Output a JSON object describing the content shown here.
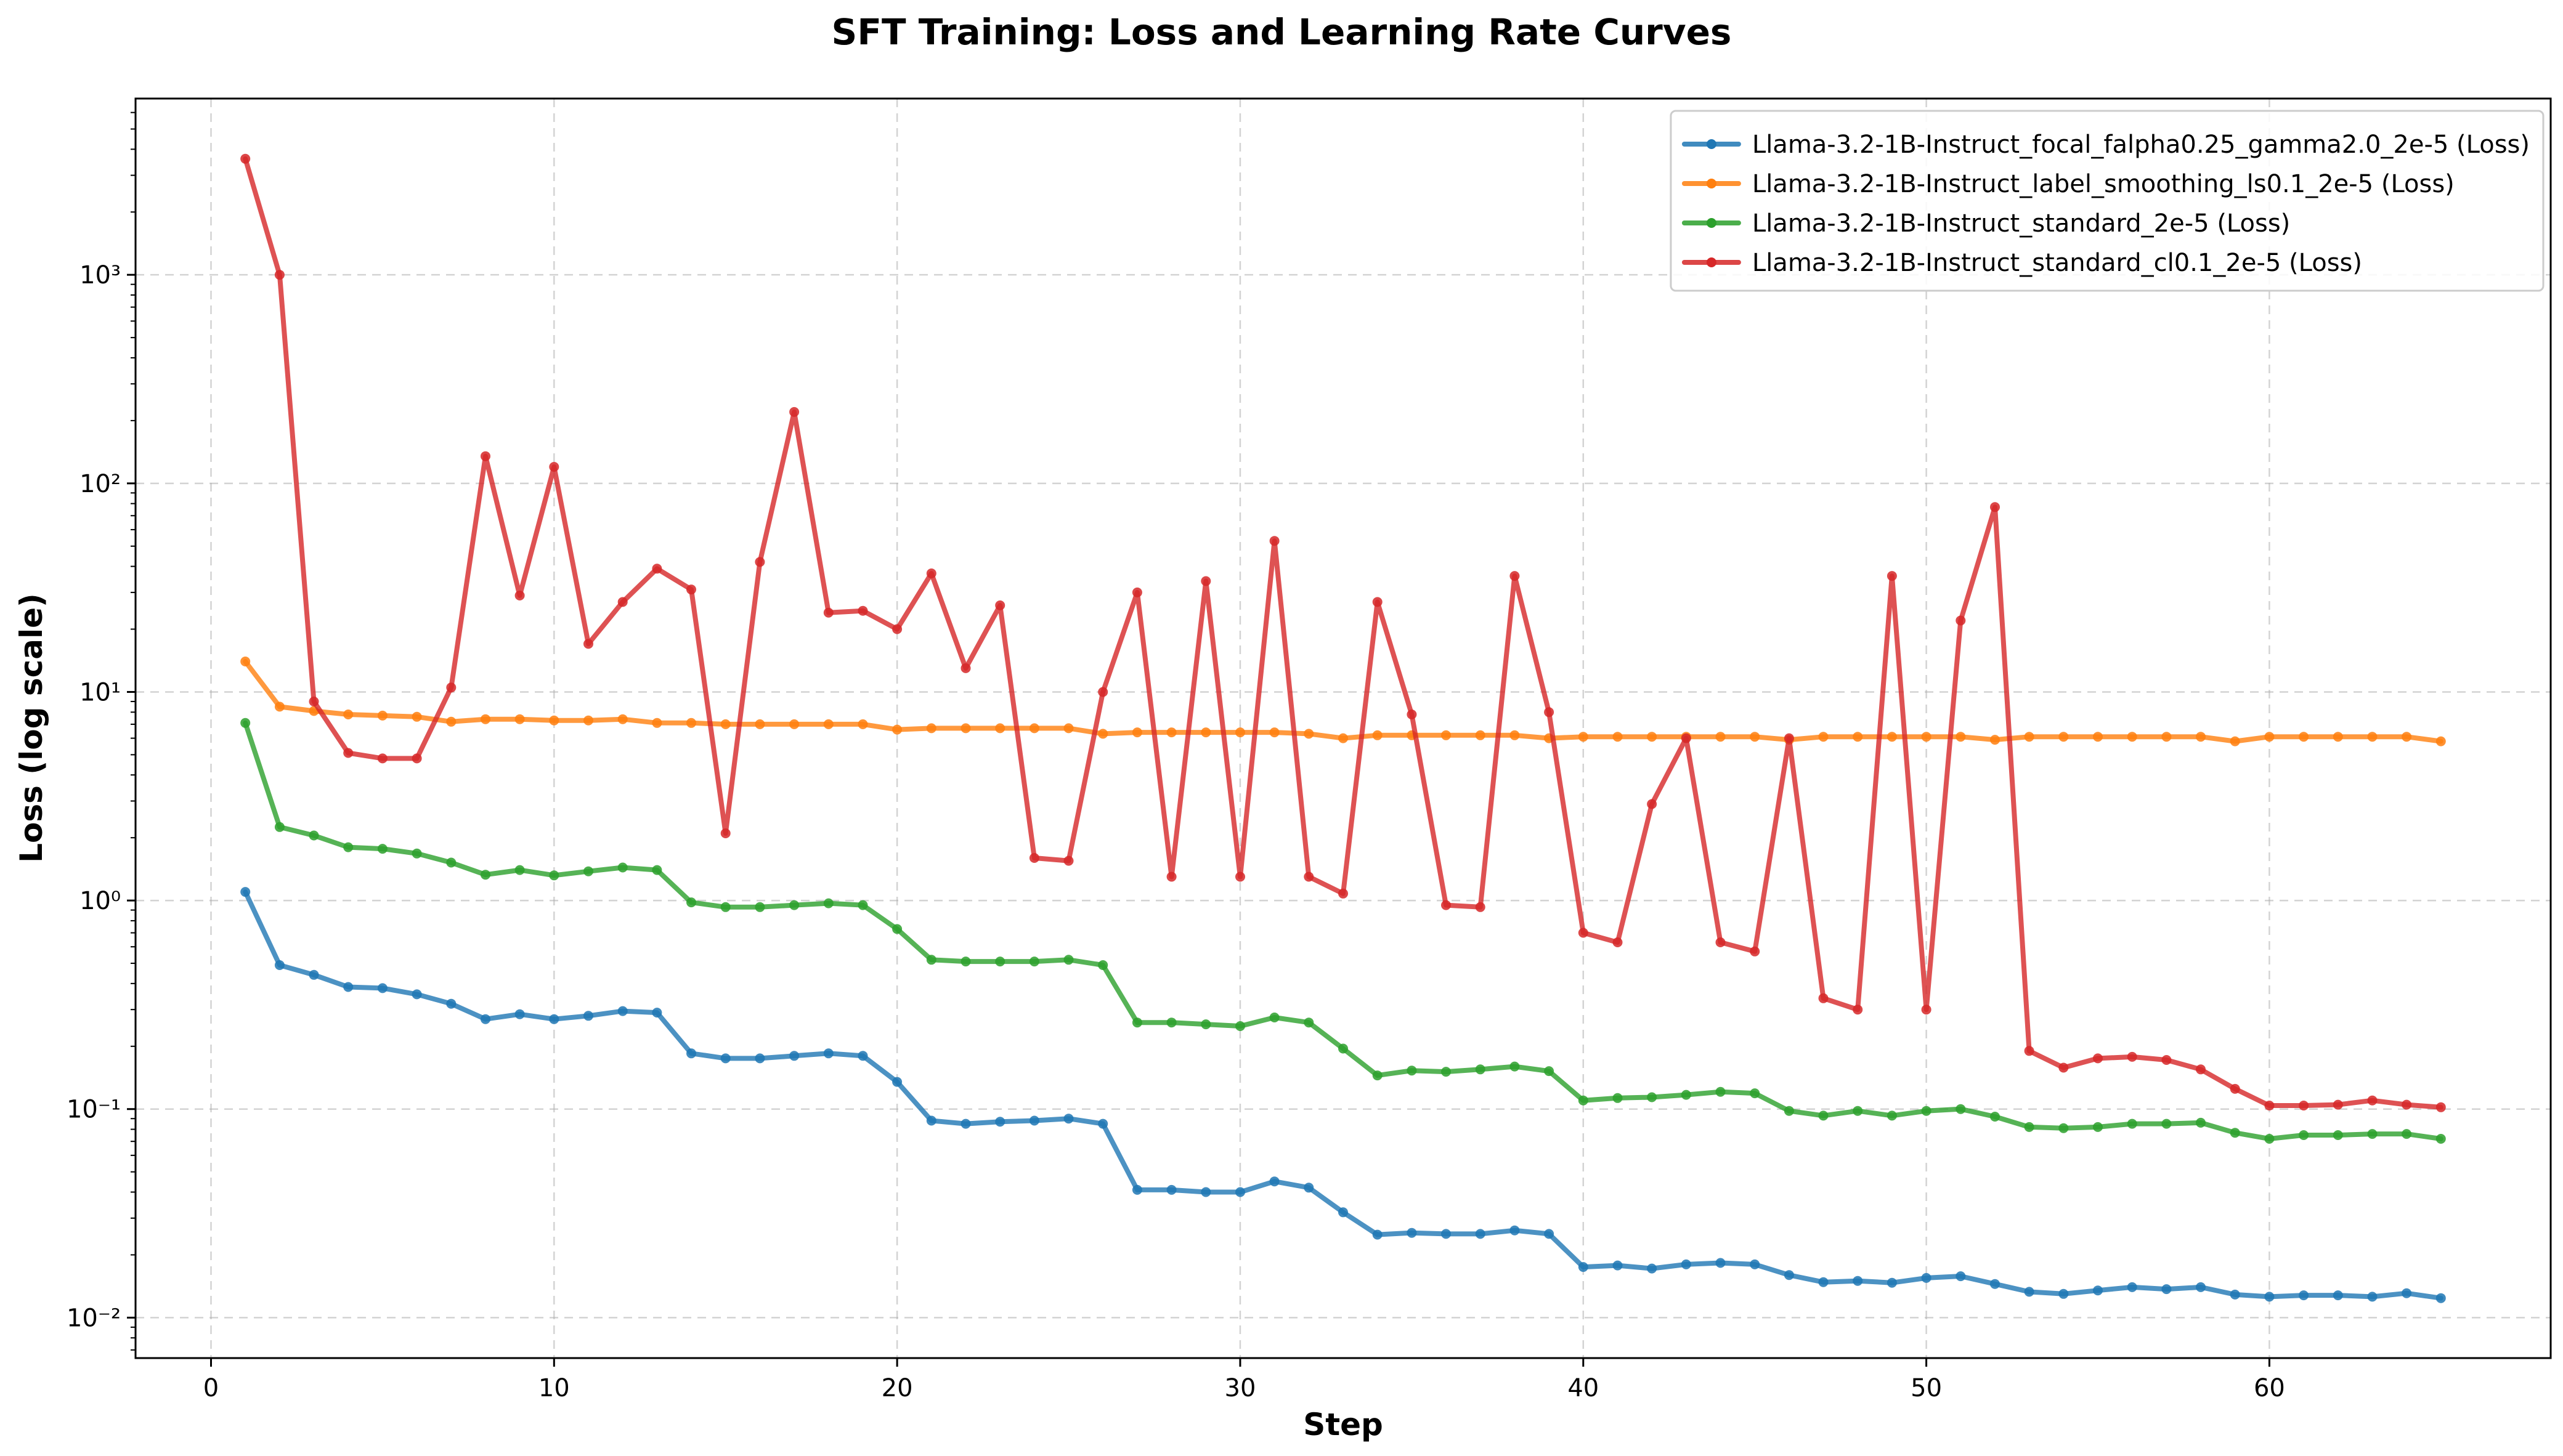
{
  "chart_data": {
    "type": "line",
    "title": "SFT Training: Loss and Learning Rate Curves",
    "xlabel": "Step",
    "ylabel": "Loss (log scale)",
    "yscale": "log",
    "xlim": [
      -2.2,
      68.2
    ],
    "ylim": [
      0.0064,
      7000
    ],
    "xticks": [
      0,
      10,
      20,
      30,
      40,
      50,
      60
    ],
    "yticks": [
      {
        "value": 0.01,
        "label": "10⁻²"
      },
      {
        "value": 0.1,
        "label": "10⁻¹"
      },
      {
        "value": 1,
        "label": "10⁰"
      },
      {
        "value": 10,
        "label": "10¹"
      },
      {
        "value": 100,
        "label": "10²"
      },
      {
        "value": 1000,
        "label": "10³"
      }
    ],
    "grid": true,
    "legend_position": "top-right",
    "x": [
      1,
      2,
      3,
      4,
      5,
      6,
      7,
      8,
      9,
      10,
      11,
      12,
      13,
      14,
      15,
      16,
      17,
      18,
      19,
      20,
      21,
      22,
      23,
      24,
      25,
      26,
      27,
      28,
      29,
      30,
      31,
      32,
      33,
      34,
      35,
      36,
      37,
      38,
      39,
      40,
      41,
      42,
      43,
      44,
      45,
      46,
      47,
      48,
      49,
      50,
      51,
      52,
      53,
      54,
      55,
      56,
      57,
      58,
      59,
      60,
      61,
      62,
      63,
      64,
      65
    ],
    "series": [
      {
        "name": "Llama-3.2-1B-Instruct_focal_falpha0.25_gamma2.0_2e-5 (Loss)",
        "color": "#1f77b4",
        "values": [
          1.1,
          0.49,
          0.44,
          0.385,
          0.38,
          0.355,
          0.32,
          0.27,
          0.285,
          0.27,
          0.28,
          0.295,
          0.29,
          0.185,
          0.175,
          0.175,
          0.18,
          0.185,
          0.18,
          0.135,
          0.088,
          0.085,
          0.087,
          0.088,
          0.09,
          0.085,
          0.041,
          0.041,
          0.04,
          0.04,
          0.045,
          0.042,
          0.032,
          0.025,
          0.0255,
          0.0252,
          0.0252,
          0.0262,
          0.0252,
          0.0175,
          0.0178,
          0.0172,
          0.018,
          0.0183,
          0.018,
          0.016,
          0.0148,
          0.015,
          0.0147,
          0.0155,
          0.0158,
          0.0145,
          0.0133,
          0.013,
          0.0135,
          0.014,
          0.0137,
          0.014,
          0.0129,
          0.0126,
          0.0128,
          0.0128,
          0.0126,
          0.0131,
          0.0124
        ]
      },
      {
        "name": "Llama-3.2-1B-Instruct_label_smoothing_ls0.1_2e-5 (Loss)",
        "color": "#ff7f0e",
        "values": [
          14,
          8.5,
          8.1,
          7.8,
          7.7,
          7.6,
          7.2,
          7.4,
          7.4,
          7.3,
          7.3,
          7.4,
          7.1,
          7.1,
          7.0,
          7.0,
          7.0,
          7.0,
          7.0,
          6.6,
          6.7,
          6.7,
          6.7,
          6.7,
          6.7,
          6.3,
          6.4,
          6.4,
          6.4,
          6.4,
          6.4,
          6.3,
          6.0,
          6.2,
          6.2,
          6.2,
          6.2,
          6.2,
          6.0,
          6.1,
          6.1,
          6.1,
          6.1,
          6.1,
          6.1,
          5.9,
          6.1,
          6.1,
          6.1,
          6.1,
          6.1,
          5.9,
          6.1,
          6.1,
          6.1,
          6.1,
          6.1,
          6.1,
          5.8,
          6.1,
          6.1,
          6.1,
          6.1,
          6.1,
          5.8
        ]
      },
      {
        "name": "Llama-3.2-1B-Instruct_standard_2e-5 (Loss)",
        "color": "#2ca02c",
        "values": [
          7.1,
          2.25,
          2.05,
          1.8,
          1.77,
          1.68,
          1.52,
          1.33,
          1.4,
          1.32,
          1.38,
          1.44,
          1.4,
          0.98,
          0.93,
          0.93,
          0.95,
          0.97,
          0.95,
          0.73,
          0.52,
          0.51,
          0.51,
          0.51,
          0.52,
          0.49,
          0.26,
          0.26,
          0.255,
          0.25,
          0.275,
          0.26,
          0.195,
          0.145,
          0.153,
          0.151,
          0.155,
          0.16,
          0.152,
          0.11,
          0.113,
          0.114,
          0.117,
          0.121,
          0.119,
          0.098,
          0.093,
          0.098,
          0.093,
          0.098,
          0.1,
          0.092,
          0.082,
          0.081,
          0.082,
          0.085,
          0.085,
          0.086,
          0.077,
          0.072,
          0.075,
          0.075,
          0.076,
          0.076,
          0.072
        ]
      },
      {
        "name": "Llama-3.2-1B-Instruct_standard_cl0.1_2e-5 (Loss)",
        "color": "#d62728",
        "values": [
          3600,
          1000,
          9,
          5.1,
          4.8,
          4.8,
          10.5,
          135,
          29,
          120,
          17,
          27,
          39,
          31,
          2.1,
          42,
          220,
          24,
          24.5,
          20,
          37,
          13,
          26,
          1.6,
          1.55,
          10,
          30,
          1.3,
          34,
          1.3,
          53,
          1.3,
          1.08,
          27,
          7.8,
          0.95,
          0.93,
          36,
          8,
          0.7,
          0.63,
          2.9,
          6,
          0.63,
          0.57,
          6,
          0.34,
          0.3,
          36,
          0.3,
          22,
          77,
          0.19,
          0.158,
          0.175,
          0.178,
          0.172,
          0.155,
          0.125,
          0.104,
          0.104,
          0.105,
          0.11,
          0.105,
          0.102
        ]
      }
    ]
  }
}
